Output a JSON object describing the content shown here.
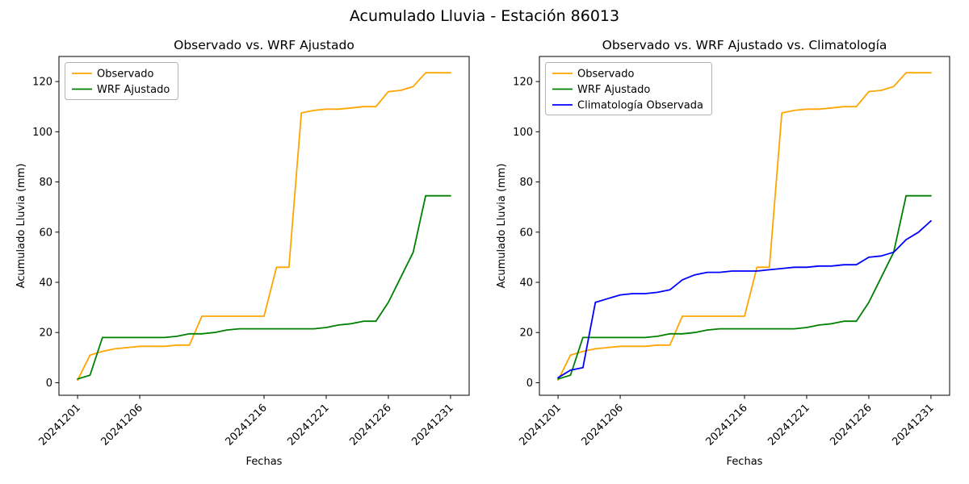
{
  "figure_title": "Acumulado Lluvia - Estación 86013",
  "chart_data": [
    {
      "type": "line",
      "title": "Observado vs. WRF Ajustado",
      "xlabel": "Fechas",
      "ylabel": "Acumulado Lluvia (mm)",
      "xlim": [
        -0.5,
        32.5
      ],
      "ylim": [
        -5,
        130
      ],
      "yticks": [
        0,
        20,
        40,
        60,
        80,
        100,
        120
      ],
      "xticks": [
        {
          "label": "20241201",
          "day": 1
        },
        {
          "label": "20241206",
          "day": 6
        },
        {
          "label": "20241216",
          "day": 16
        },
        {
          "label": "20241221",
          "day": 21
        },
        {
          "label": "20241226",
          "day": 26
        },
        {
          "label": "20241231",
          "day": 31
        }
      ],
      "legend_position": "upper left",
      "grid": false,
      "x_days": [
        1,
        2,
        3,
        4,
        5,
        6,
        7,
        8,
        9,
        10,
        11,
        12,
        13,
        14,
        15,
        16,
        17,
        18,
        19,
        20,
        21,
        22,
        23,
        24,
        25,
        26,
        27,
        28,
        29,
        30,
        31
      ],
      "series": [
        {
          "name": "Observado",
          "color": "#FFA500",
          "values": [
            1,
            11,
            12.5,
            13.5,
            14,
            14.5,
            14.5,
            14.5,
            15,
            15,
            26.5,
            26.5,
            26.5,
            26.5,
            26.5,
            26.5,
            46,
            46,
            107.5,
            108.5,
            109,
            109,
            109.5,
            110,
            110,
            116,
            116.5,
            118,
            123.5,
            123.5,
            123.5
          ]
        },
        {
          "name": "WRF Ajustado",
          "color": "#008000",
          "values": [
            1.5,
            3,
            18,
            18,
            18,
            18,
            18,
            18,
            18.5,
            19.5,
            19.5,
            20,
            21,
            21.5,
            21.5,
            21.5,
            21.5,
            21.5,
            21.5,
            21.5,
            22,
            23,
            23.5,
            24.5,
            24.5,
            32,
            42,
            52,
            74.5,
            74.5,
            74.5
          ]
        }
      ]
    },
    {
      "type": "line",
      "title": "Observado vs. WRF Ajustado vs. Climatología",
      "xlabel": "Fechas",
      "ylabel": "Acumulado Lluvia (mm)",
      "xlim": [
        -0.5,
        32.5
      ],
      "ylim": [
        -5,
        130
      ],
      "yticks": [
        0,
        20,
        40,
        60,
        80,
        100,
        120
      ],
      "xticks": [
        {
          "label": "20241201",
          "day": 1
        },
        {
          "label": "20241206",
          "day": 6
        },
        {
          "label": "20241216",
          "day": 16
        },
        {
          "label": "20241221",
          "day": 21
        },
        {
          "label": "20241226",
          "day": 26
        },
        {
          "label": "20241231",
          "day": 31
        }
      ],
      "legend_position": "upper left",
      "grid": false,
      "x_days": [
        1,
        2,
        3,
        4,
        5,
        6,
        7,
        8,
        9,
        10,
        11,
        12,
        13,
        14,
        15,
        16,
        17,
        18,
        19,
        20,
        21,
        22,
        23,
        24,
        25,
        26,
        27,
        28,
        29,
        30,
        31
      ],
      "series": [
        {
          "name": "Observado",
          "color": "#FFA500",
          "values": [
            1,
            11,
            12.5,
            13.5,
            14,
            14.5,
            14.5,
            14.5,
            15,
            15,
            26.5,
            26.5,
            26.5,
            26.5,
            26.5,
            26.5,
            46,
            46,
            107.5,
            108.5,
            109,
            109,
            109.5,
            110,
            110,
            116,
            116.5,
            118,
            123.5,
            123.5,
            123.5
          ]
        },
        {
          "name": "WRF Ajustado",
          "color": "#008000",
          "values": [
            1.5,
            3,
            18,
            18,
            18,
            18,
            18,
            18,
            18.5,
            19.5,
            19.5,
            20,
            21,
            21.5,
            21.5,
            21.5,
            21.5,
            21.5,
            21.5,
            21.5,
            22,
            23,
            23.5,
            24.5,
            24.5,
            32,
            42,
            52,
            74.5,
            74.5,
            74.5
          ]
        },
        {
          "name": "Climatología Observada",
          "color": "#0000FF",
          "values": [
            2,
            5,
            6,
            32,
            33.5,
            35,
            35.5,
            35.5,
            36,
            37,
            41,
            43,
            44,
            44,
            44.5,
            44.5,
            44.5,
            45,
            45.5,
            46,
            46,
            46.5,
            46.5,
            47,
            47,
            50,
            50.5,
            52,
            57,
            60,
            64.5
          ]
        }
      ]
    }
  ]
}
